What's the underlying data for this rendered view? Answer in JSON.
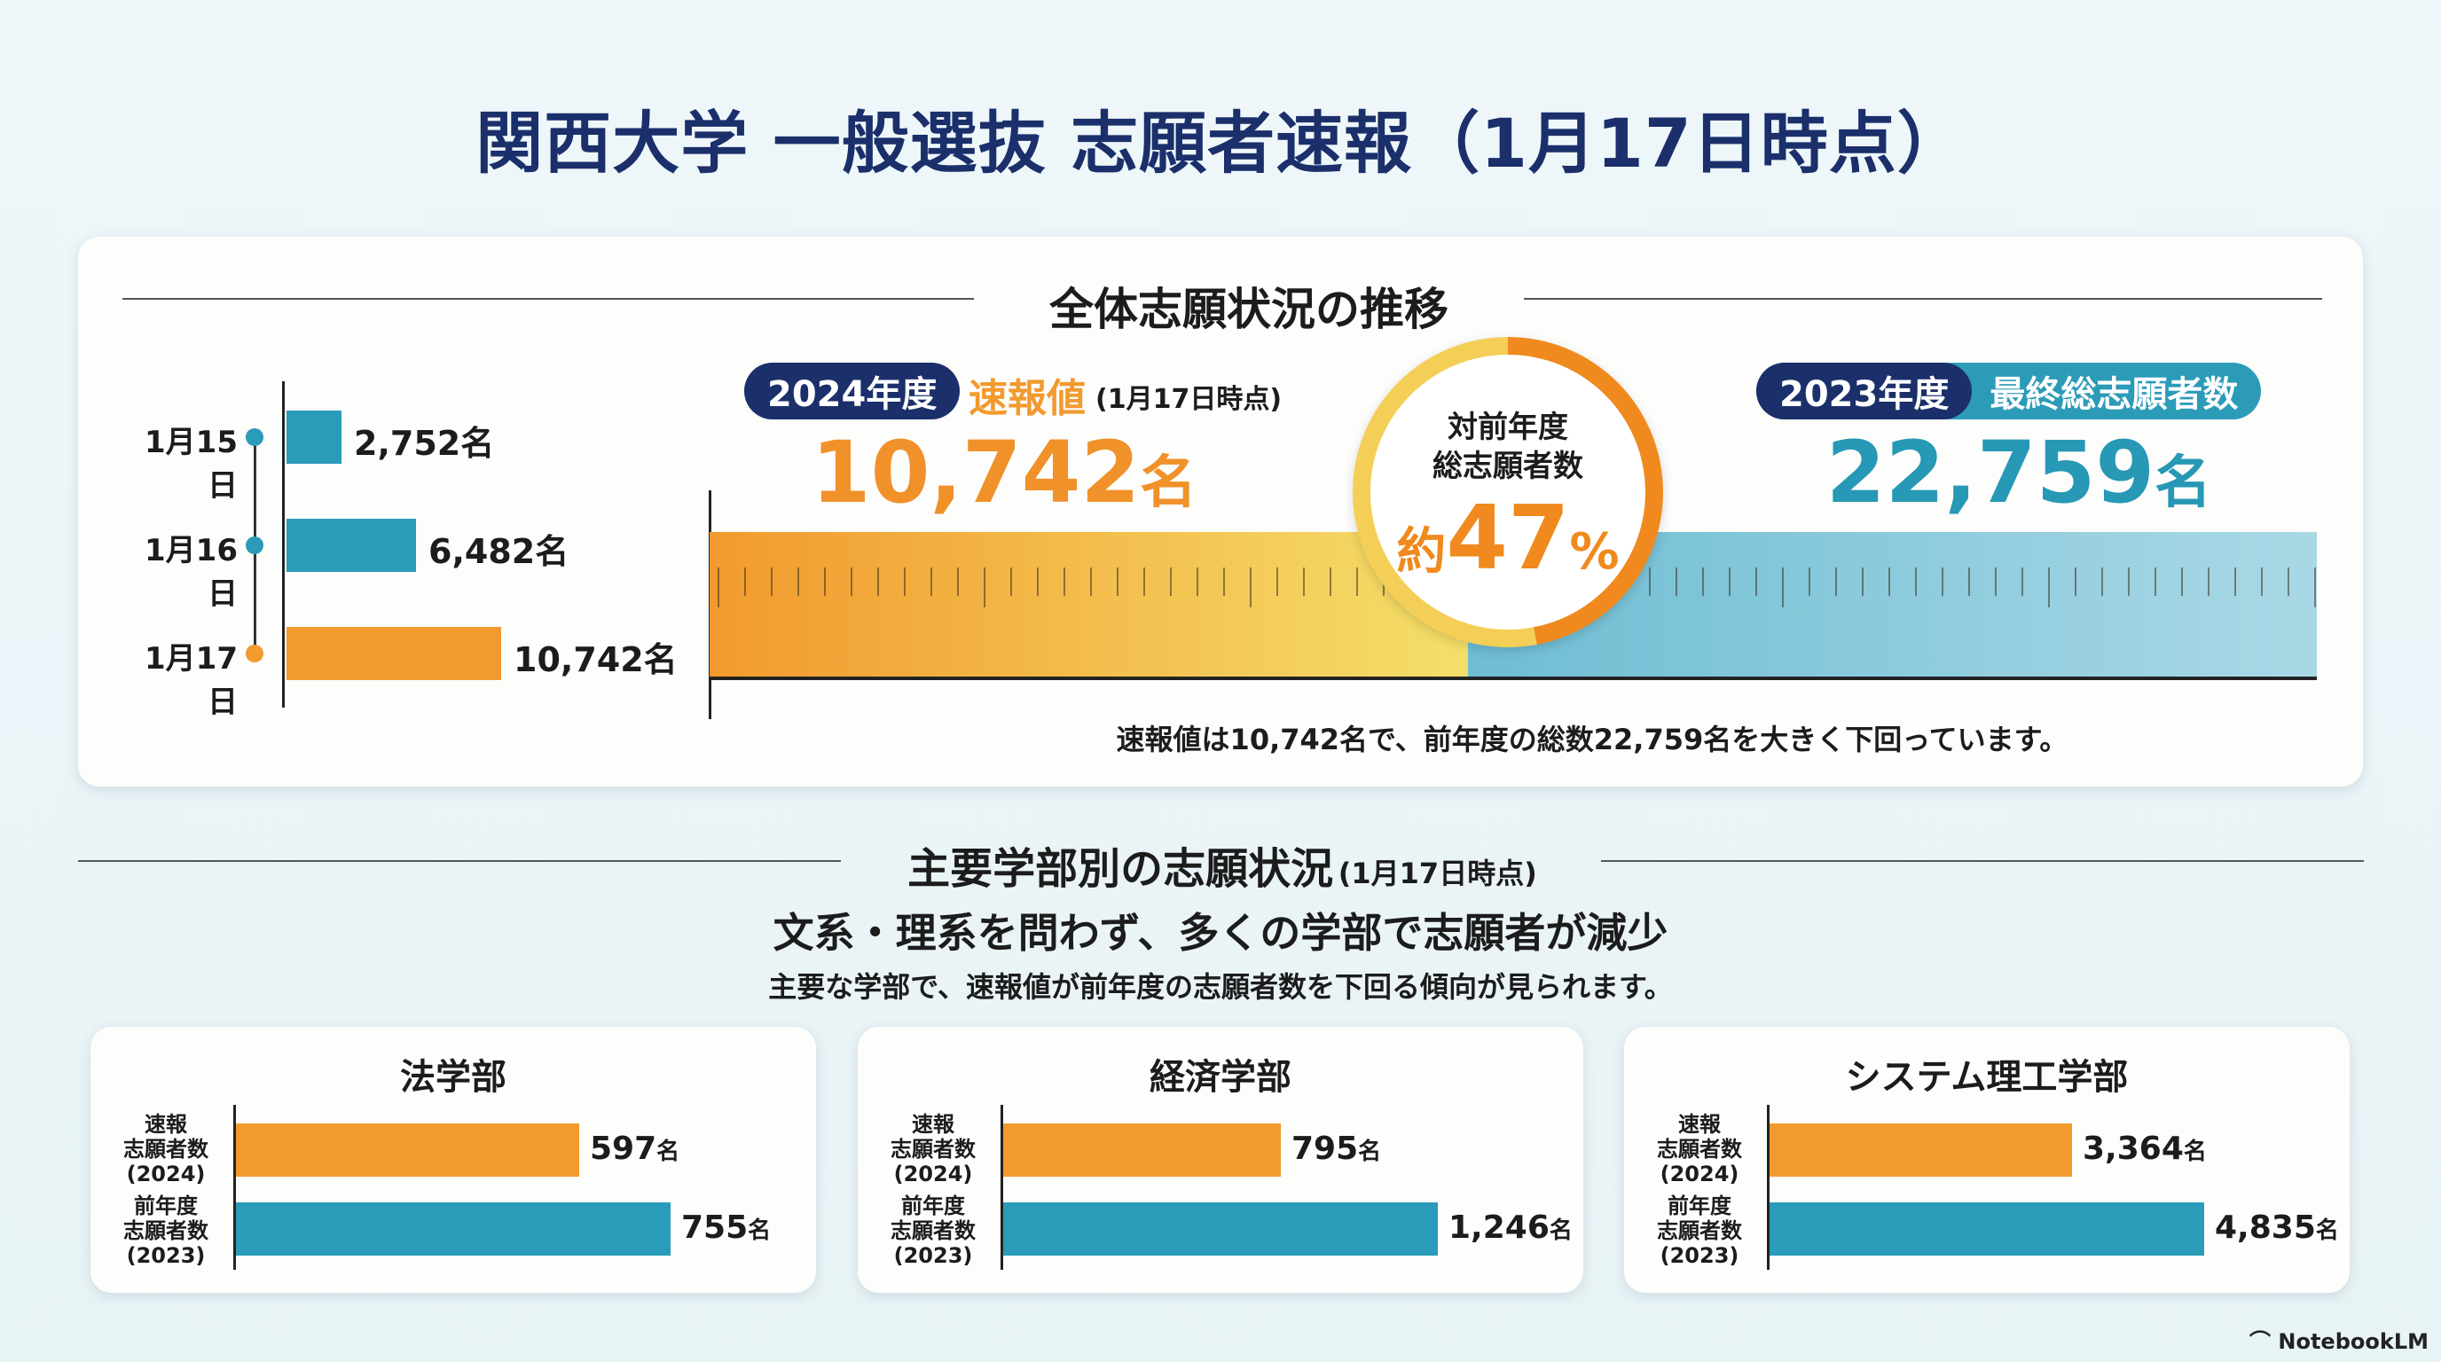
{
  "title": "関西大学 一般選抜 志願者速報（1月17日時点）",
  "colors": {
    "navy": "#1b2f6b",
    "orange": "#f29a2e",
    "teal": "#2a9bb8",
    "yellow": "#f2d45c"
  },
  "overall": {
    "section_title": "全体志願状況の推移",
    "daily": [
      {
        "date": "1月15日",
        "value": 2752,
        "label": "2,752名",
        "color": "teal"
      },
      {
        "date": "1月16日",
        "value": 6482,
        "label": "6,482名",
        "color": "teal"
      },
      {
        "date": "1月17日",
        "value": 10742,
        "label": "10,742名",
        "color": "orange"
      }
    ],
    "current": {
      "year_badge": "2024年度",
      "label": "速報値",
      "as_of": "(1月17日時点)",
      "number": "10,742",
      "unit": "名",
      "value": 10742
    },
    "previous": {
      "year_badge": "2023年度",
      "label": "最終総志願者数",
      "number": "22,759",
      "unit": "名",
      "value": 22759
    },
    "ratio": {
      "line1": "対前年度",
      "line2": "総志願者数",
      "prefix": "約",
      "percent": "47",
      "percent_sign": "%",
      "value": 47
    },
    "note": "速報値は10,742名で、前年度の総数22,759名を大きく下回っています。"
  },
  "faculties_section": {
    "title": "主要学部別の志願状況",
    "as_of": "(1月17日時点)",
    "headline": "文系・理系を問わず、多くの学部で志願者が減少",
    "description": "主要な学部で、速報値が前年度の志願者数を下回る傾向が見られます。",
    "row_labels": {
      "current": [
        "速報",
        "志願者数",
        "(2024)"
      ],
      "previous": [
        "前年度",
        "志願者数",
        "(2023)"
      ]
    },
    "unit": "名",
    "faculties": [
      {
        "name": "法学部",
        "current": 597,
        "current_label": "597",
        "previous": 755,
        "previous_label": "755"
      },
      {
        "name": "経済学部",
        "current": 795,
        "current_label": "795",
        "previous": 1246,
        "previous_label": "1,246"
      },
      {
        "name": "システム理工学部",
        "current": 3364,
        "current_label": "3,364",
        "previous": 4835,
        "previous_label": "4,835"
      }
    ]
  },
  "watermark": "NotebookLM"
}
